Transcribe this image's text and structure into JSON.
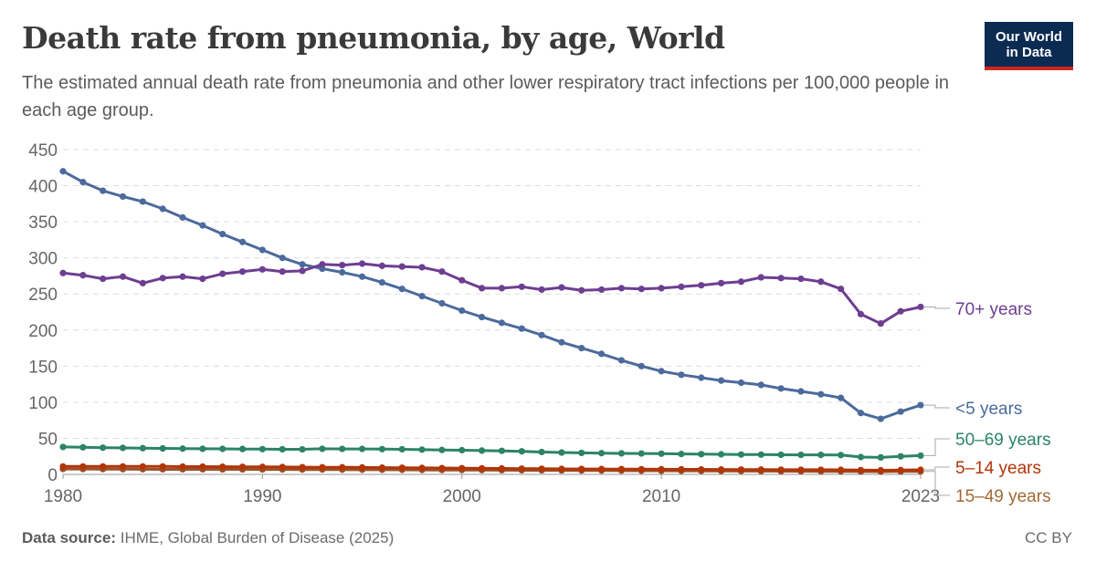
{
  "header": {
    "title": "Death rate from pneumonia, by age, World",
    "subtitle": "The estimated annual death rate from pneumonia and other lower respiratory tract infections per 100,000 people in each age group.",
    "logo_line1": "Our World",
    "logo_line2": "in Data"
  },
  "footer": {
    "source_label": "Data source:",
    "source_text": "IHME, Global Burden of Disease (2025)",
    "license": "CC BY"
  },
  "chart_data": {
    "type": "line",
    "title": "Death rate from pneumonia, by age, World",
    "x": [
      1980,
      1981,
      1982,
      1983,
      1984,
      1985,
      1986,
      1987,
      1988,
      1989,
      1990,
      1991,
      1992,
      1993,
      1994,
      1995,
      1996,
      1997,
      1998,
      1999,
      2000,
      2001,
      2002,
      2003,
      2004,
      2005,
      2006,
      2007,
      2008,
      2009,
      2010,
      2011,
      2012,
      2013,
      2014,
      2015,
      2016,
      2017,
      2018,
      2019,
      2020,
      2021,
      2022,
      2023
    ],
    "x_ticks": [
      1980,
      1990,
      2000,
      2010,
      2023
    ],
    "y_ticks": [
      0,
      50,
      100,
      150,
      200,
      250,
      300,
      350,
      400,
      450
    ],
    "ylim": [
      0,
      450
    ],
    "xlim": [
      1980,
      2023
    ],
    "grid": "horizontal dashed",
    "legend": "right end labels",
    "series": [
      {
        "name": "70+ years",
        "color": "#6d3e91",
        "values": [
          279,
          276,
          271,
          274,
          265,
          272,
          274,
          271,
          278,
          281,
          284,
          281,
          282,
          291,
          290,
          292,
          289,
          288,
          287,
          281,
          269,
          258,
          258,
          260,
          256,
          259,
          255,
          256,
          258,
          257,
          258,
          260,
          262,
          265,
          267,
          273,
          272,
          271,
          267,
          257,
          222,
          209,
          226,
          232
        ]
      },
      {
        "name": "<5 years",
        "color": "#4c6a9c",
        "values": [
          420,
          405,
          393,
          385,
          378,
          368,
          356,
          345,
          333,
          322,
          311,
          300,
          291,
          285,
          280,
          274,
          266,
          257,
          247,
          237,
          227,
          218,
          210,
          202,
          193,
          183,
          175,
          167,
          158,
          150,
          143,
          138,
          134,
          130,
          127,
          124,
          119,
          115,
          111,
          106,
          85,
          77,
          87,
          96
        ]
      },
      {
        "name": "50–69 years",
        "color": "#2c8465",
        "values": [
          38,
          37.5,
          37,
          36.7,
          36.3,
          36,
          35.7,
          35.5,
          35.4,
          35.2,
          35,
          34.8,
          34.7,
          35.5,
          35.3,
          35.3,
          35,
          34.8,
          34.3,
          33.8,
          33.5,
          33,
          32.6,
          32,
          31,
          30.3,
          29.8,
          29.4,
          29.1,
          28.9,
          28.7,
          28.3,
          28,
          27.8,
          27.6,
          27.4,
          27.2,
          27.1,
          27,
          26.8,
          24,
          23.5,
          25,
          26
        ]
      },
      {
        "name": "5–14 years",
        "color": "#b13507",
        "values": [
          11,
          11,
          11,
          11,
          11,
          11,
          10.8,
          10.7,
          10.6,
          10.5,
          10.4,
          10.2,
          10,
          9.9,
          9.8,
          9.6,
          9.4,
          9.2,
          9,
          8.8,
          8.6,
          8.4,
          8.2,
          8,
          7.8,
          7.6,
          7.5,
          7.4,
          7.3,
          7.2,
          7.1,
          7,
          6.9,
          6.8,
          6.7,
          6.6,
          6.5,
          6.4,
          6.4,
          6.3,
          5.9,
          5.7,
          6,
          6.3
        ]
      },
      {
        "name": "15–49 years",
        "color": "#9a5129",
        "values": [
          7.5,
          7.4,
          7.3,
          7.2,
          7.1,
          7,
          7,
          7,
          6.9,
          6.9,
          6.8,
          6.8,
          6.7,
          6.7,
          6.6,
          6.5,
          6.4,
          6.3,
          6.2,
          6.1,
          6,
          5.9,
          5.8,
          5.7,
          5.6,
          5.5,
          5.4,
          5.3,
          5.2,
          5.1,
          5,
          4.9,
          4.8,
          4.7,
          4.6,
          4.5,
          4.4,
          4.3,
          4.2,
          4.1,
          3.9,
          3.8,
          4,
          4.1
        ]
      }
    ],
    "end_labels": [
      {
        "name": "70+ years",
        "color": "#6d3e91"
      },
      {
        "name": "<5 years",
        "color": "#4c6a9c"
      },
      {
        "name": "50–69 years",
        "color": "#2c8465"
      },
      {
        "name": "5–14 years",
        "color": "#b13507"
      },
      {
        "name": "15–49 years",
        "color": "#a06a35"
      }
    ]
  }
}
